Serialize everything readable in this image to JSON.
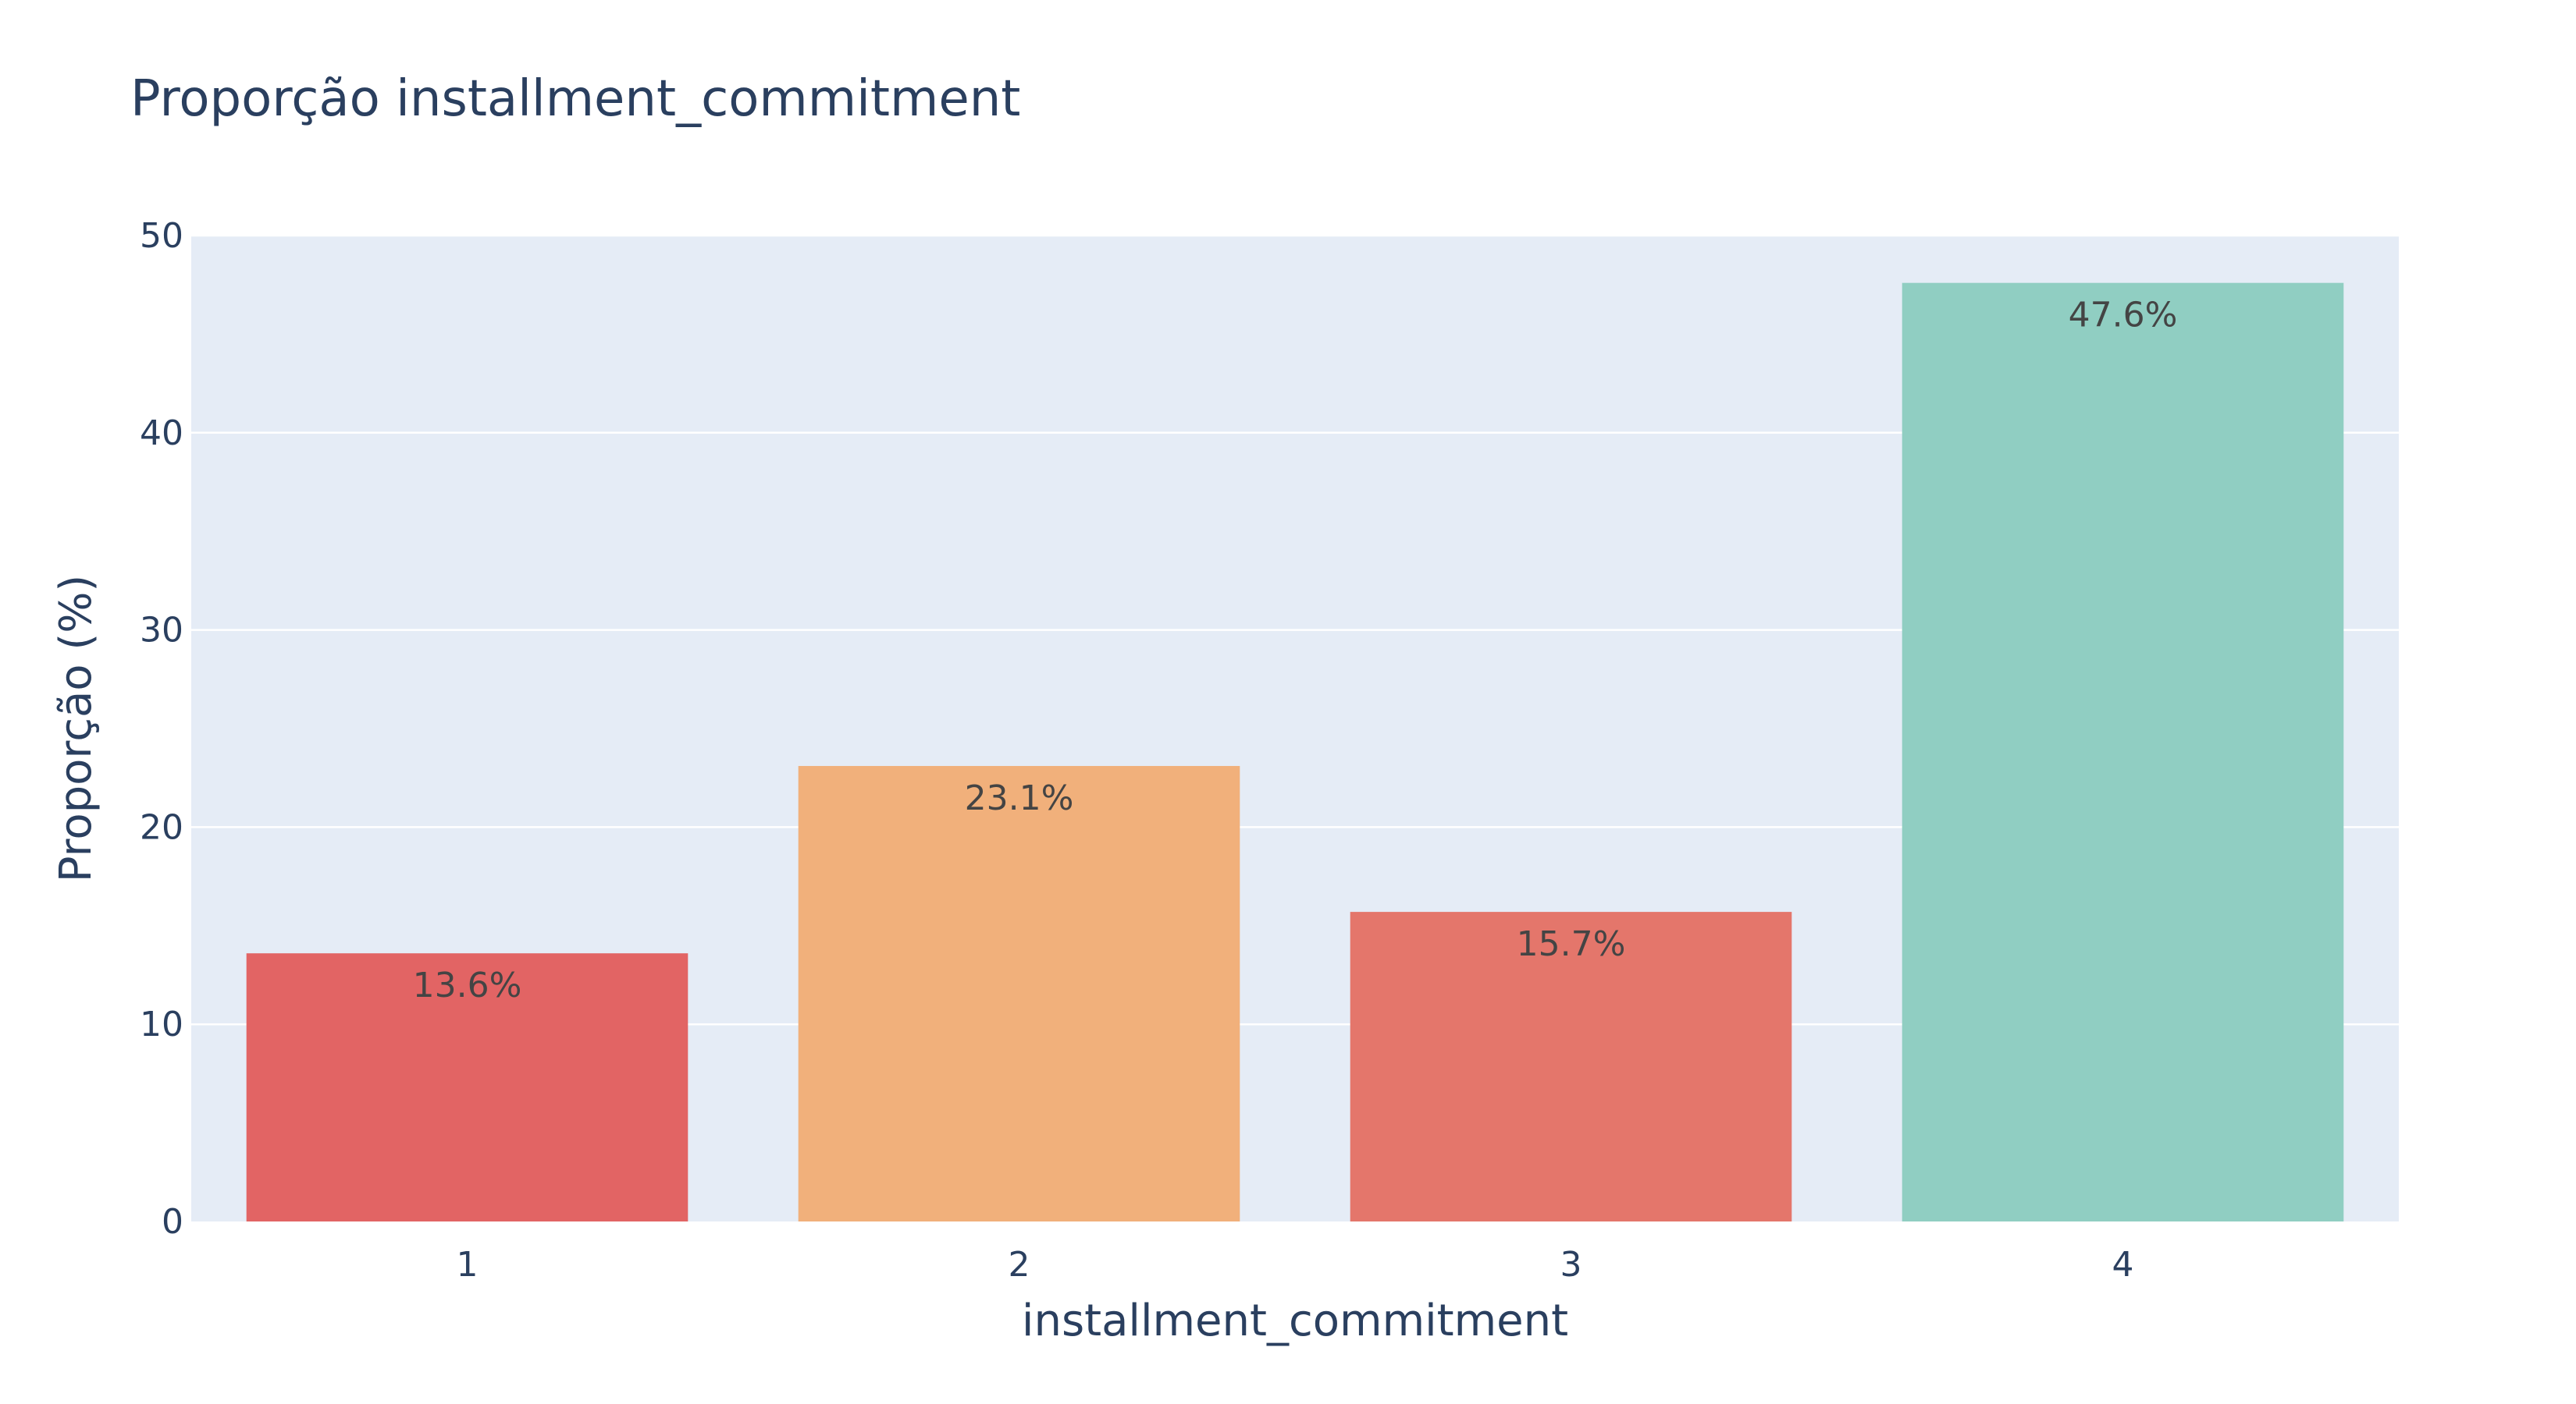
{
  "chart_data": {
    "type": "bar",
    "title": "Proporção installment_commitment",
    "xlabel": "installment_commitment",
    "ylabel": "Proporção (%)",
    "categories": [
      "1",
      "2",
      "3",
      "4"
    ],
    "values": [
      13.6,
      23.1,
      15.7,
      47.6
    ],
    "data_labels": [
      "13.6%",
      "23.1%",
      "15.7%",
      "47.6%"
    ],
    "bar_colors": [
      "#e26464",
      "#f1b07b",
      "#e4766b",
      "#90cec2"
    ],
    "ylim": [
      0,
      50
    ],
    "yticks": [
      0,
      10,
      20,
      30,
      40,
      50
    ],
    "ytick_labels": [
      "0",
      "10",
      "20",
      "30",
      "40",
      "50"
    ],
    "grid": true,
    "plot_background": "#e5ecf6",
    "text_color": "#2a3f5f"
  }
}
